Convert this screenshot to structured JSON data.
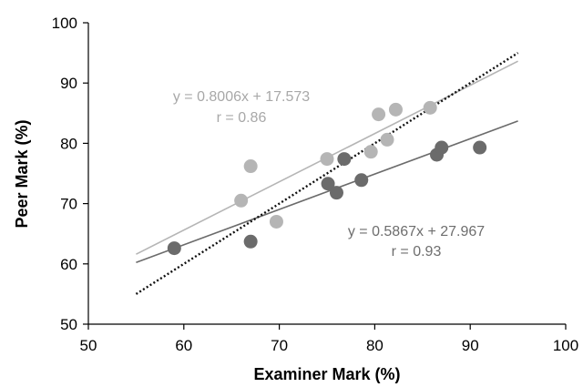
{
  "chart_data": {
    "type": "scatter",
    "xlabel": "Examiner Mark (%)",
    "ylabel": "Peer Mark (%)",
    "xlim": [
      50,
      100
    ],
    "ylim": [
      50,
      100
    ],
    "x_ticks": [
      "50",
      "60",
      "70",
      "80",
      "90",
      "100"
    ],
    "y_ticks": [
      "50",
      "60",
      "70",
      "80",
      "90",
      "100"
    ],
    "grid": false,
    "series": [
      {
        "color": "#b5b5b5",
        "points": [
          {
            "x": 66.0,
            "y": 70.5
          },
          {
            "x": 67.0,
            "y": 76.2
          },
          {
            "x": 69.7,
            "y": 67.0
          },
          {
            "x": 75.0,
            "y": 77.4
          },
          {
            "x": 79.6,
            "y": 78.6
          },
          {
            "x": 80.4,
            "y": 84.8
          },
          {
            "x": 81.3,
            "y": 80.6
          },
          {
            "x": 82.2,
            "y": 85.6
          },
          {
            "x": 85.8,
            "y": 85.9
          }
        ],
        "trendline": {
          "slope": 0.8006,
          "intercept": 17.573,
          "x_range": [
            55,
            95
          ],
          "color": "#b5b5b5"
        },
        "annotation": {
          "equation": "y = 0.8006x + 17.573",
          "r": "r = 0.86"
        }
      },
      {
        "color": "#6b6b6b",
        "points": [
          {
            "x": 59.0,
            "y": 62.6
          },
          {
            "x": 67.0,
            "y": 63.7
          },
          {
            "x": 75.1,
            "y": 73.3
          },
          {
            "x": 76.0,
            "y": 71.8
          },
          {
            "x": 76.8,
            "y": 77.4
          },
          {
            "x": 78.6,
            "y": 73.9
          },
          {
            "x": 86.5,
            "y": 78.1
          },
          {
            "x": 87.0,
            "y": 79.3
          },
          {
            "x": 91.0,
            "y": 79.3
          }
        ],
        "trendline": {
          "slope": 0.5867,
          "intercept": 27.967,
          "x_range": [
            55,
            95
          ],
          "color": "#6b6b6b"
        },
        "annotation": {
          "equation": "y = 0.5867x + 27.967",
          "r": "r = 0.93"
        }
      }
    ],
    "reference_line": {
      "style": "dotted",
      "color": "#111111",
      "points": [
        {
          "x": 55,
          "y": 55
        },
        {
          "x": 95,
          "y": 95
        }
      ]
    }
  }
}
